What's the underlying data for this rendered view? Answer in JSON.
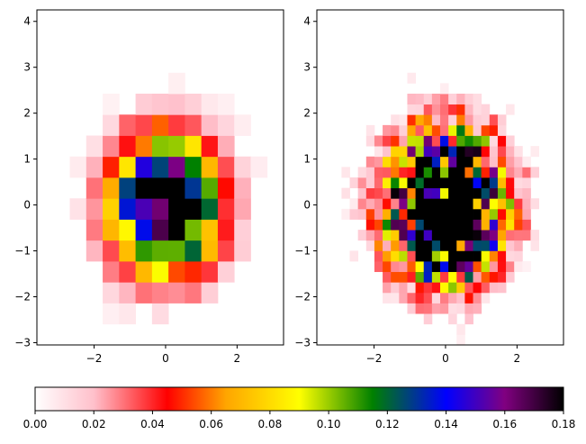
{
  "chart_data": [
    {
      "type": "heatmap",
      "panel": "left",
      "bins": "coarse",
      "xlim": [
        -3.6,
        3.3
      ],
      "ylim": [
        -3.05,
        4.25
      ],
      "x_ticks": [
        -2,
        0,
        2
      ],
      "y_ticks": [
        -3,
        -2,
        -1,
        0,
        1,
        2,
        3,
        4
      ],
      "x_tick_labels": [
        "−2",
        "0",
        "2"
      ],
      "y_tick_labels": [
        "−3",
        "−2",
        "−1",
        "0",
        "1",
        "2",
        "3",
        "4"
      ],
      "grid": false
    },
    {
      "type": "heatmap",
      "panel": "right",
      "bins": "fine",
      "xlim": [
        -3.6,
        3.3
      ],
      "ylim": [
        -3.05,
        4.25
      ],
      "x_ticks": [
        -2,
        0,
        2
      ],
      "y_ticks": [
        -3,
        -2,
        -1,
        0,
        1,
        2,
        3,
        4
      ],
      "x_tick_labels": [
        "−2",
        "0",
        "2"
      ],
      "y_tick_labels": [
        "−3",
        "−2",
        "−1",
        "0",
        "1",
        "2",
        "3",
        "4"
      ],
      "grid": false
    }
  ],
  "colorbar": {
    "colormap": "gist_heat_r-like",
    "stops": [
      {
        "v": 0.0,
        "color": "#ffffff"
      },
      {
        "v": 0.02,
        "color": "#ffc0cb"
      },
      {
        "v": 0.045,
        "color": "#ff0000"
      },
      {
        "v": 0.065,
        "color": "#ffa500"
      },
      {
        "v": 0.09,
        "color": "#ffff00"
      },
      {
        "v": 0.115,
        "color": "#008000"
      },
      {
        "v": 0.14,
        "color": "#0000ff"
      },
      {
        "v": 0.16,
        "color": "#800080"
      },
      {
        "v": 0.18,
        "color": "#000000"
      }
    ],
    "range": [
      0.0,
      0.18
    ],
    "ticks": [
      0.0,
      0.02,
      0.04,
      0.06,
      0.08,
      0.1,
      0.12,
      0.14,
      0.16,
      0.18
    ],
    "tick_labels": [
      "0.00",
      "0.02",
      "0.04",
      "0.06",
      "0.08",
      "0.10",
      "0.12",
      "0.14",
      "0.16",
      "0.18"
    ],
    "orientation": "horizontal"
  }
}
